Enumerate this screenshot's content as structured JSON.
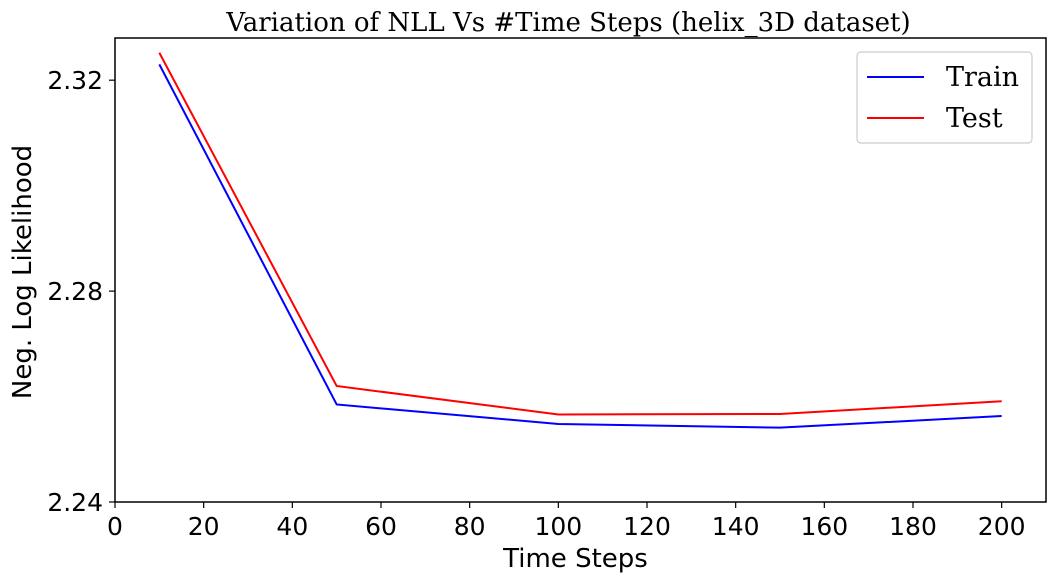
{
  "chart_data": {
    "type": "line",
    "title": "Variation of NLL Vs #Time Steps (helix_3D dataset)",
    "xlabel": "Time Steps",
    "ylabel": "Neg. Log Likelihood",
    "xlim": [
      0,
      210
    ],
    "ylim": [
      2.24,
      2.328
    ],
    "xticks": [
      0,
      20,
      40,
      60,
      80,
      100,
      120,
      140,
      160,
      180,
      200
    ],
    "yticks": [
      2.24,
      2.28,
      2.32
    ],
    "xtick_labels": [
      "0",
      "20",
      "40",
      "60",
      "80",
      "100",
      "120",
      "140",
      "160",
      "180",
      "200"
    ],
    "ytick_labels": [
      "2.24",
      "2.28",
      "2.32"
    ],
    "grid": false,
    "legend_position": "top-right",
    "x": [
      10,
      50,
      100,
      150,
      200
    ],
    "series": [
      {
        "name": "Train",
        "color": "#0000ff",
        "values": [
          2.323,
          2.2585,
          2.2548,
          2.2541,
          2.2563
        ]
      },
      {
        "name": "Test",
        "color": "#ff0000",
        "values": [
          2.3252,
          2.262,
          2.2566,
          2.2567,
          2.2591
        ]
      }
    ]
  }
}
